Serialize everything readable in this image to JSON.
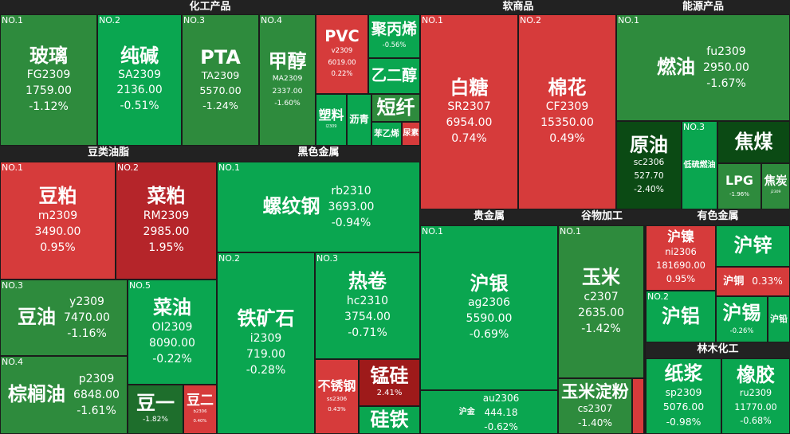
{
  "sectors": [
    {
      "title": "化工产品",
      "tiles": [
        {
          "rank": "NO.1",
          "name": "玻璃",
          "code": "FG2309",
          "price": "1759.00",
          "change": "-1.12%"
        },
        {
          "rank": "NO.2",
          "name": "纯碱",
          "code": "SA2309",
          "price": "2136.00",
          "change": "-0.51%"
        },
        {
          "rank": "NO.3",
          "name": "PTA",
          "code": "TA2309",
          "price": "5570.00",
          "change": "-1.24%"
        },
        {
          "rank": "NO.4",
          "name": "甲醇",
          "code": "MA2309",
          "price": "2337.00",
          "change": "-1.60%"
        },
        {
          "name": "PVC",
          "code": "v2309",
          "price": "6019.00",
          "change": "0.22%"
        },
        {
          "name": "聚丙烯",
          "change": "-0.56%"
        },
        {
          "name": "乙二醇"
        },
        {
          "name": "塑料",
          "code": "l2309"
        },
        {
          "name": "沥青"
        },
        {
          "name": "短纤"
        },
        {
          "name": "苯乙烯"
        },
        {
          "name": "尿素"
        }
      ]
    },
    {
      "title": "豆类油脂",
      "tiles": [
        {
          "rank": "NO.1",
          "name": "豆粕",
          "code": "m2309",
          "price": "3490.00",
          "change": "0.95%"
        },
        {
          "rank": "NO.2",
          "name": "菜粕",
          "code": "RM2309",
          "price": "2985.00",
          "change": "1.95%"
        },
        {
          "rank": "NO.3",
          "name": "豆油",
          "code": "y2309",
          "price": "7470.00",
          "change": "-1.16%"
        },
        {
          "rank": "NO.5",
          "name": "菜油",
          "code": "OI2309",
          "price": "8090.00",
          "change": "-0.22%"
        },
        {
          "rank": "NO.4",
          "name": "棕榈油",
          "code": "p2309",
          "price": "6848.00",
          "change": "-1.61%"
        },
        {
          "name": "豆一",
          "change": "-1.82%"
        },
        {
          "name": "豆二",
          "code": "b2306",
          "change": "0.40%"
        }
      ]
    },
    {
      "title": "黑色金属",
      "tiles": [
        {
          "rank": "NO.1",
          "name": "螺纹钢",
          "code": "rb2310",
          "price": "3693.00",
          "change": "-0.94%"
        },
        {
          "rank": "NO.2",
          "name": "铁矿石",
          "code": "i2309",
          "price": "719.00",
          "change": "-0.28%"
        },
        {
          "rank": "NO.3",
          "name": "热卷",
          "code": "hc2310",
          "price": "3754.00",
          "change": "-0.71%"
        },
        {
          "name": "不锈钢",
          "code": "ss2306",
          "change": "0.43%"
        },
        {
          "name": "锰硅",
          "change": "2.41%"
        },
        {
          "name": "硅铁"
        }
      ]
    },
    {
      "title": "软商品",
      "tiles": [
        {
          "rank": "NO.1",
          "name": "白糖",
          "code": "SR2307",
          "price": "6954.00",
          "change": "0.74%"
        },
        {
          "rank": "NO.2",
          "name": "棉花",
          "code": "CF2309",
          "price": "15350.00",
          "change": "0.49%"
        }
      ]
    },
    {
      "title": "能源产品",
      "tiles": [
        {
          "rank": "NO.1",
          "name": "燃油",
          "code": "fu2309",
          "price": "2950.00",
          "change": "-1.67%"
        },
        {
          "name": "原油",
          "code": "sc2306",
          "price": "527.70",
          "change": "-2.40%"
        },
        {
          "rank": "NO.3",
          "name": "低硫燃油"
        },
        {
          "name": "焦煤"
        },
        {
          "name": "LPG",
          "change": "-1.96%"
        },
        {
          "name": "焦炭",
          "code": "j2309"
        }
      ]
    },
    {
      "title": "贵金属",
      "tiles": [
        {
          "rank": "NO.1",
          "name": "沪银",
          "code": "ag2306",
          "price": "5590.00",
          "change": "-0.69%"
        },
        {
          "name": "沪金",
          "code": "au2306",
          "price": "444.18",
          "change": "-0.62%"
        }
      ]
    },
    {
      "title": "谷物加工",
      "tiles": [
        {
          "rank": "NO.1",
          "name": "玉米",
          "code": "c2307",
          "price": "2635.00",
          "change": "-1.42%"
        },
        {
          "name": "玉米淀粉",
          "code": "cs2307",
          "change": "-1.40%"
        }
      ]
    },
    {
      "title": "有色金属",
      "tiles": [
        {
          "name": "沪镍",
          "code": "ni2306",
          "price": "181690.00",
          "change": "0.95%"
        },
        {
          "name": "沪锌"
        },
        {
          "name": "沪铜",
          "change": "0.33%"
        },
        {
          "rank": "NO.2",
          "name": "沪铝"
        },
        {
          "name": "沪锡",
          "change": "-0.26%"
        },
        {
          "name": "沪铅"
        }
      ]
    },
    {
      "title": "林木化工",
      "tiles": [
        {
          "name": "纸浆",
          "code": "sp2309",
          "price": "5076.00",
          "change": "-0.98%"
        },
        {
          "name": "橡胶",
          "code": "ru2309",
          "price": "11770.00",
          "change": "-0.68%"
        }
      ]
    }
  ]
}
